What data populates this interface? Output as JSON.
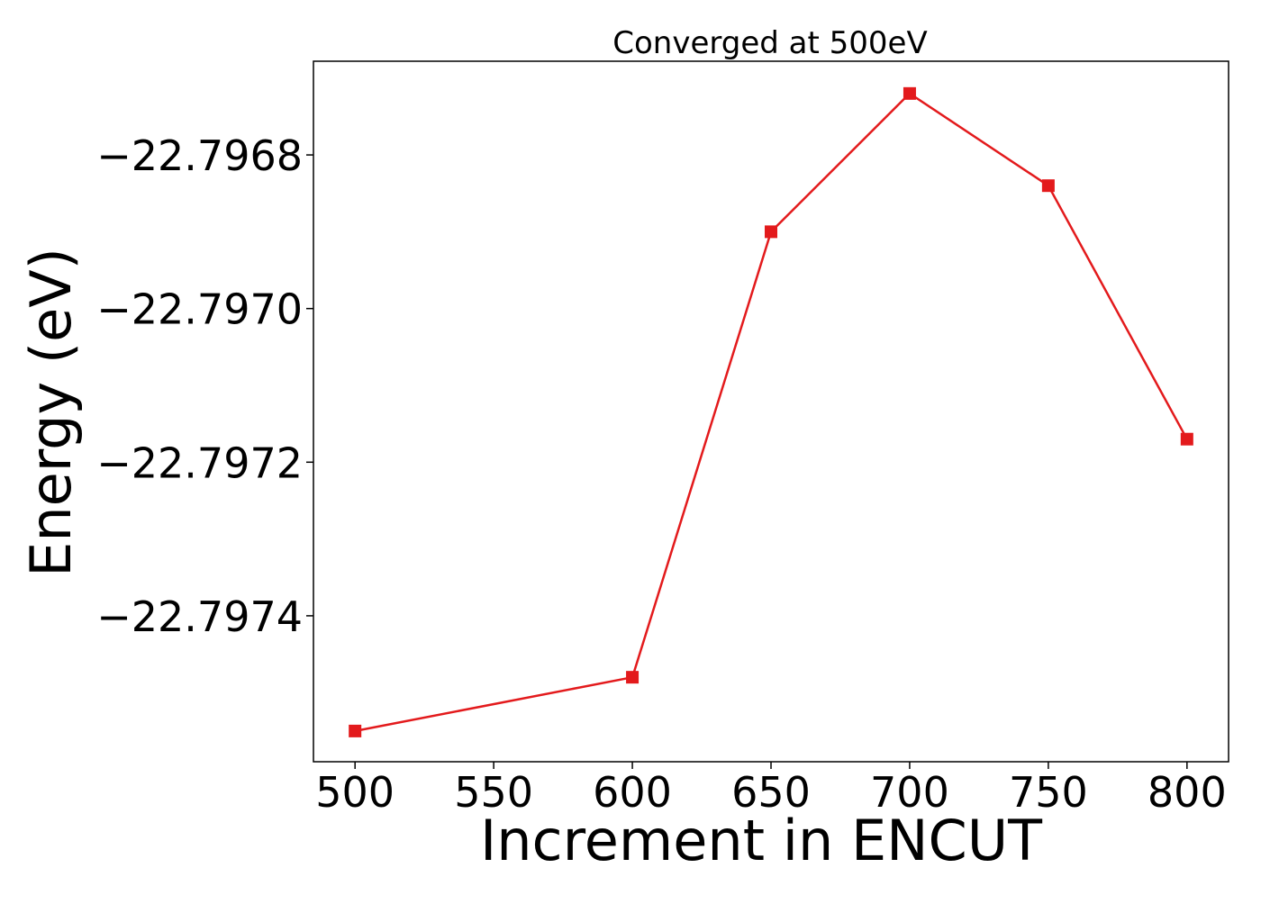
{
  "chart_data": {
    "type": "line",
    "title": "Converged at 500eV",
    "xlabel": "Increment in ENCUT",
    "ylabel": "Energy (eV)",
    "x": [
      500,
      600,
      650,
      700,
      750,
      800
    ],
    "series": [
      {
        "values": [
          -22.79755,
          -22.79748,
          -22.7969,
          -22.79672,
          -22.79684,
          -22.79717
        ],
        "color": "#e31a1c",
        "marker": "square"
      }
    ],
    "xlim": [
      485,
      815
    ],
    "ylim": [
      -22.79759,
      -22.796678
    ],
    "xticks": [
      500,
      550,
      600,
      650,
      700,
      750,
      800
    ],
    "xtick_labels": [
      "500",
      "550",
      "600",
      "650",
      "700",
      "750",
      "800"
    ],
    "yticks": [
      -22.7974,
      -22.7972,
      -22.797,
      -22.7968
    ],
    "ytick_labels": [
      "−22.7974",
      "−22.7972",
      "−22.7970",
      "−22.7968"
    ],
    "grid": false,
    "legend": "none"
  }
}
